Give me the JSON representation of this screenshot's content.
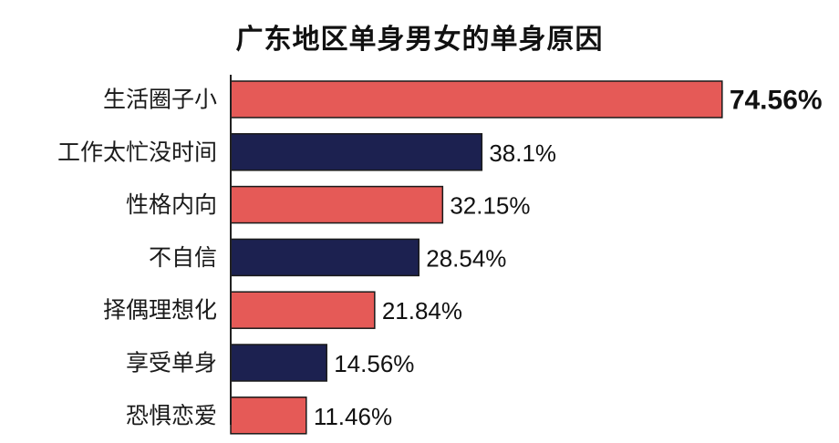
{
  "chart_data": {
    "type": "bar",
    "orientation": "horizontal",
    "title": "广东地区单身男女的单身原因",
    "categories": [
      "生活圈子小",
      "工作太忙没时间",
      "性格内向",
      "不自信",
      "择偶理想化",
      "享受单身",
      "恐惧恋爱"
    ],
    "values": [
      74.56,
      38.1,
      32.15,
      28.54,
      21.84,
      14.56,
      11.46
    ],
    "value_labels": [
      "74.56%",
      "38.1%",
      "32.15%",
      "28.54%",
      "21.84%",
      "14.56%",
      "11.46%"
    ],
    "bar_colors": [
      "#e55a57",
      "#1c2150",
      "#e55a57",
      "#1c2150",
      "#e55a57",
      "#1c2150",
      "#e55a57"
    ],
    "highlight_label_color": "#e55a57",
    "label_color": "#111111",
    "xlim": [
      0,
      75
    ],
    "grid": false,
    "legend": "none"
  }
}
